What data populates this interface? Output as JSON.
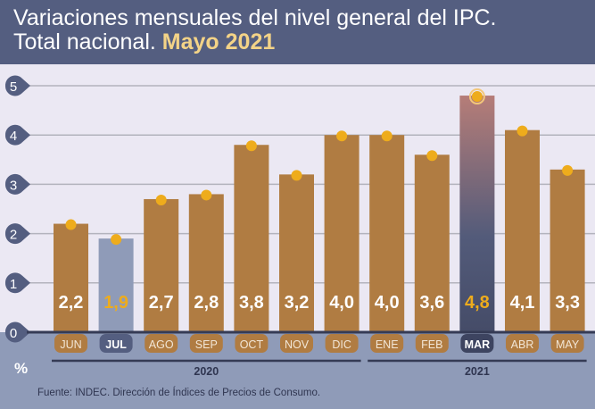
{
  "header": {
    "title_line1": "Variaciones mensuales del nivel general del IPC.",
    "title_line2": "Total nacional.",
    "title_highlight": "Mayo 2021"
  },
  "chart_data": {
    "type": "bar",
    "title": "Variaciones mensuales del nivel general del IPC. Total nacional. Mayo 2021",
    "ylabel": "%",
    "ylim": [
      0,
      5
    ],
    "yticks": [
      "0",
      "1",
      "2",
      "3",
      "4",
      "5"
    ],
    "categories": [
      "JUN",
      "JUL",
      "AGO",
      "SEP",
      "OCT",
      "NOV",
      "DIC",
      "ENE",
      "FEB",
      "MAR",
      "ABR",
      "MAY"
    ],
    "values": [
      2.2,
      1.9,
      2.7,
      2.8,
      3.8,
      3.2,
      4.0,
      4.0,
      3.6,
      4.8,
      4.1,
      3.3
    ],
    "value_labels": [
      "2,2",
      "1,9",
      "2,7",
      "2,8",
      "3,8",
      "3,2",
      "4,0",
      "4,0",
      "3,6",
      "4,8",
      "4,1",
      "3,3"
    ],
    "highlight_min": "JUL",
    "highlight_max": "MAR",
    "years": [
      {
        "label": "2020",
        "from": 0,
        "to": 6
      },
      {
        "label": "2021",
        "from": 7,
        "to": 11
      }
    ],
    "grid": true
  },
  "colors": {
    "bar": "#b07c42",
    "min_bar": "#8f9bb8",
    "max_top": "#b67d78",
    "max_bottom": "#4a5270",
    "dot": "#eeac1c",
    "axis_badge": "#545e80",
    "footer_bg": "#8f9bb8"
  },
  "footer": {
    "source": "Fuente: INDEC. Dirección de Índices de Precios de Consumo."
  }
}
